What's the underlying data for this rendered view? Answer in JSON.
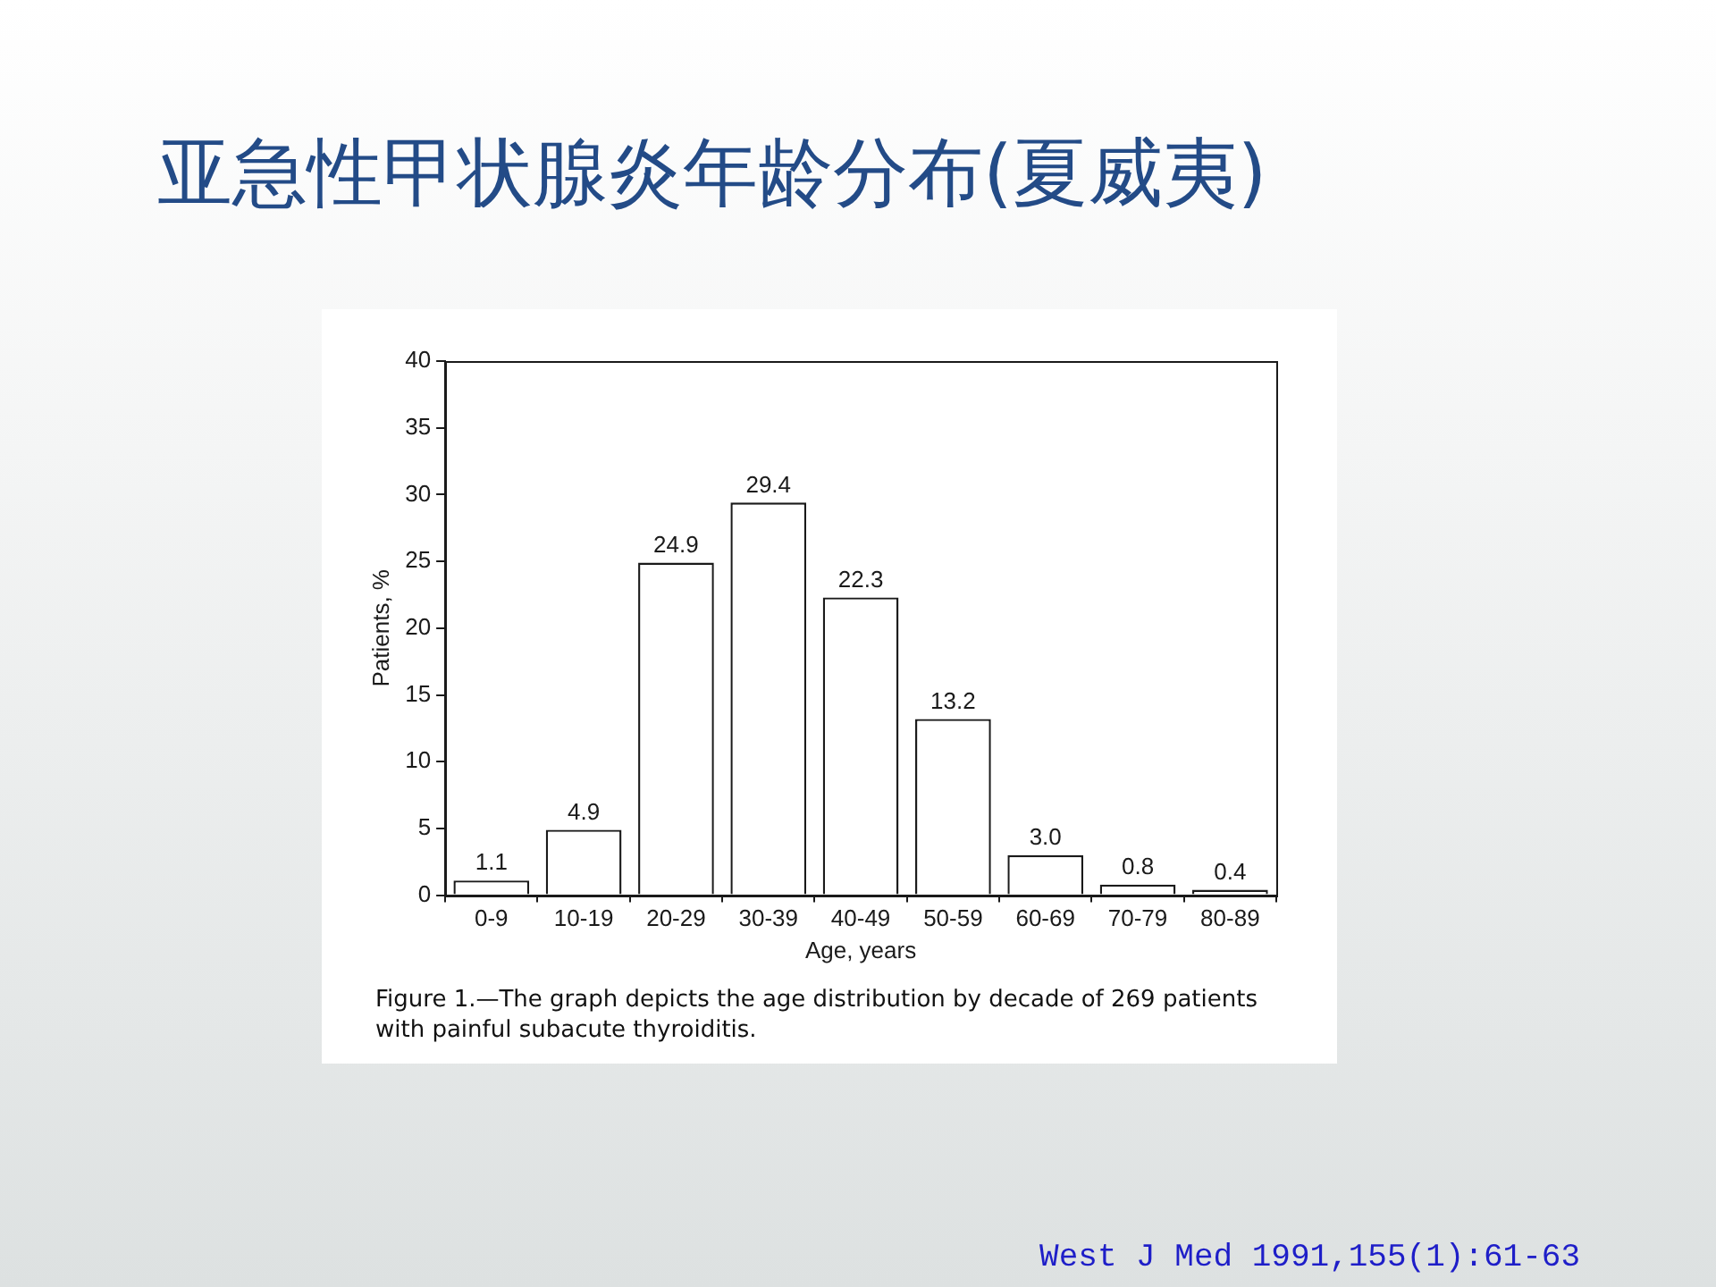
{
  "chart_data": {
    "type": "bar",
    "title": "亚急性甲状腺炎年龄分布(夏威夷)",
    "xlabel": "Age, years",
    "ylabel": "Patients, %",
    "categories": [
      "0-9",
      "10-19",
      "20-29",
      "30-39",
      "40-49",
      "50-59",
      "60-69",
      "70-79",
      "80-89"
    ],
    "values": [
      1.1,
      4.9,
      24.9,
      29.4,
      22.3,
      13.2,
      3.0,
      0.8,
      0.4
    ],
    "value_labels": [
      "1.1",
      "4.9",
      "24.9",
      "29.4",
      "22.3",
      "13.2",
      "3.0",
      "0.8",
      "0.4"
    ],
    "color": "#ffffff",
    "ylim": [
      0,
      40
    ],
    "yticks": [
      0,
      5,
      10,
      15,
      20,
      25,
      30,
      35,
      40
    ],
    "annotations": [
      "Figure 1.—The graph depicts the age distribution by decade of 269 patients with painful subacute thyroiditis.",
      "West J Med 1991,155(1):61-63"
    ]
  }
}
